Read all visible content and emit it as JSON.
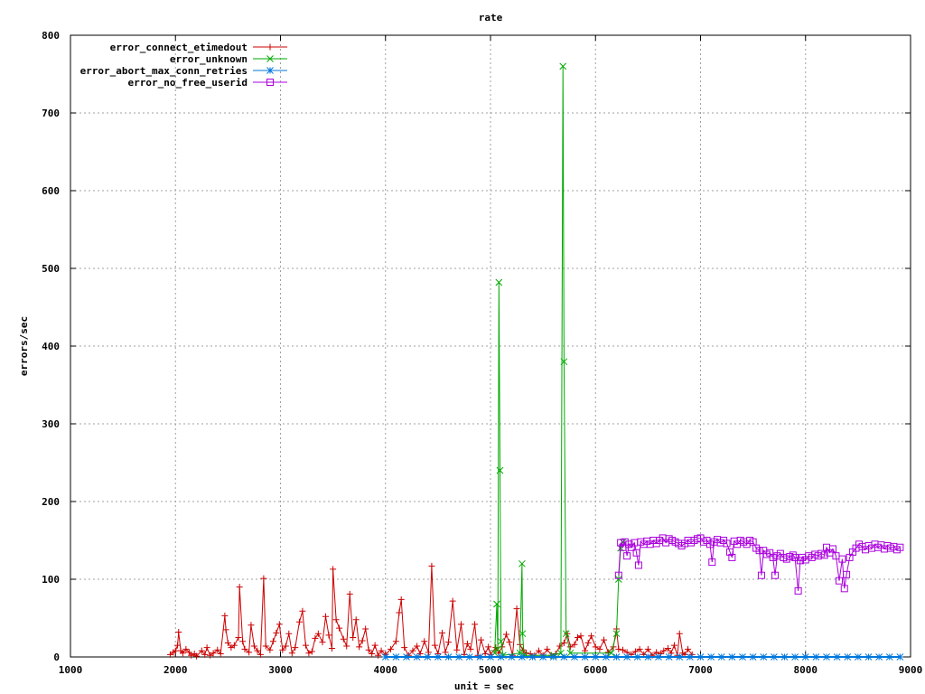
{
  "chart_data": {
    "type": "line",
    "title": "rate",
    "xlabel": "unit = sec",
    "ylabel": "errors/sec",
    "xlim": [
      1000,
      9000
    ],
    "ylim": [
      0,
      800
    ],
    "grid": true,
    "legend_position": "top-left",
    "x_ticks": [
      1000,
      2000,
      3000,
      4000,
      5000,
      6000,
      7000,
      8000,
      9000
    ],
    "y_ticks": [
      0,
      100,
      200,
      300,
      400,
      500,
      600,
      700,
      800
    ],
    "series": [
      {
        "name": "error_connect_etimedout",
        "color": "#cc0000",
        "marker": "plus",
        "points": [
          [
            1950,
            3
          ],
          [
            1980,
            6
          ],
          [
            2000,
            8
          ],
          [
            2020,
            15
          ],
          [
            2030,
            32
          ],
          [
            2050,
            8
          ],
          [
            2070,
            5
          ],
          [
            2100,
            10
          ],
          [
            2130,
            6
          ],
          [
            2150,
            2
          ],
          [
            2180,
            4
          ],
          [
            2200,
            1
          ],
          [
            2250,
            8
          ],
          [
            2280,
            3
          ],
          [
            2300,
            12
          ],
          [
            2330,
            2
          ],
          [
            2360,
            5
          ],
          [
            2400,
            9
          ],
          [
            2430,
            4
          ],
          [
            2470,
            53
          ],
          [
            2480,
            35
          ],
          [
            2500,
            18
          ],
          [
            2530,
            12
          ],
          [
            2560,
            15
          ],
          [
            2600,
            25
          ],
          [
            2610,
            90
          ],
          [
            2640,
            20
          ],
          [
            2660,
            10
          ],
          [
            2700,
            6
          ],
          [
            2720,
            41
          ],
          [
            2750,
            14
          ],
          [
            2780,
            8
          ],
          [
            2810,
            3
          ],
          [
            2840,
            101
          ],
          [
            2860,
            14
          ],
          [
            2900,
            9
          ],
          [
            2930,
            20
          ],
          [
            2960,
            31
          ],
          [
            2990,
            42
          ],
          [
            3020,
            9
          ],
          [
            3050,
            14
          ],
          [
            3080,
            30
          ],
          [
            3110,
            5
          ],
          [
            3140,
            12
          ],
          [
            3180,
            45
          ],
          [
            3210,
            59
          ],
          [
            3240,
            15
          ],
          [
            3270,
            5
          ],
          [
            3300,
            7
          ],
          [
            3330,
            24
          ],
          [
            3360,
            30
          ],
          [
            3400,
            19
          ],
          [
            3430,
            52
          ],
          [
            3460,
            28
          ],
          [
            3490,
            11
          ],
          [
            3500,
            113
          ],
          [
            3530,
            48
          ],
          [
            3560,
            37
          ],
          [
            3600,
            23
          ],
          [
            3630,
            14
          ],
          [
            3660,
            81
          ],
          [
            3690,
            25
          ],
          [
            3720,
            48
          ],
          [
            3750,
            13
          ],
          [
            3780,
            21
          ],
          [
            3810,
            36
          ],
          [
            3840,
            9
          ],
          [
            3870,
            4
          ],
          [
            3900,
            15
          ],
          [
            3930,
            2
          ],
          [
            3960,
            8
          ],
          [
            4000,
            3
          ],
          [
            4050,
            10
          ],
          [
            4100,
            20
          ],
          [
            4130,
            57
          ],
          [
            4150,
            74
          ],
          [
            4180,
            12
          ],
          [
            4220,
            2
          ],
          [
            4260,
            8
          ],
          [
            4300,
            14
          ],
          [
            4330,
            4
          ],
          [
            4370,
            20
          ],
          [
            4410,
            6
          ],
          [
            4440,
            117
          ],
          [
            4470,
            15
          ],
          [
            4500,
            4
          ],
          [
            4540,
            31
          ],
          [
            4570,
            6
          ],
          [
            4600,
            19
          ],
          [
            4640,
            72
          ],
          [
            4680,
            9
          ],
          [
            4720,
            42
          ],
          [
            4750,
            3
          ],
          [
            4780,
            17
          ],
          [
            4810,
            10
          ],
          [
            4850,
            42
          ],
          [
            4880,
            2
          ],
          [
            4910,
            22
          ],
          [
            4950,
            4
          ],
          [
            4980,
            13
          ],
          [
            5000,
            3
          ],
          [
            5050,
            12
          ],
          [
            5080,
            5
          ],
          [
            5110,
            13
          ],
          [
            5150,
            29
          ],
          [
            5180,
            19
          ],
          [
            5210,
            2
          ],
          [
            5250,
            62
          ],
          [
            5280,
            16
          ],
          [
            5310,
            9
          ],
          [
            5340,
            5
          ],
          [
            5380,
            4
          ],
          [
            5420,
            2
          ],
          [
            5460,
            8
          ],
          [
            5500,
            2
          ],
          [
            5540,
            10
          ],
          [
            5580,
            2
          ],
          [
            5620,
            4
          ],
          [
            5660,
            14
          ],
          [
            5700,
            18
          ],
          [
            5730,
            30
          ],
          [
            5760,
            13
          ],
          [
            5800,
            16
          ],
          [
            5830,
            25
          ],
          [
            5860,
            27
          ],
          [
            5900,
            8
          ],
          [
            5930,
            18
          ],
          [
            5960,
            27
          ],
          [
            6000,
            13
          ],
          [
            6040,
            10
          ],
          [
            6080,
            22
          ],
          [
            6120,
            6
          ],
          [
            6170,
            13
          ],
          [
            6200,
            36
          ],
          [
            6220,
            10
          ],
          [
            6260,
            9
          ],
          [
            6300,
            6
          ],
          [
            6340,
            3
          ],
          [
            6380,
            7
          ],
          [
            6420,
            10
          ],
          [
            6460,
            3
          ],
          [
            6500,
            10
          ],
          [
            6540,
            2
          ],
          [
            6580,
            6
          ],
          [
            6620,
            4
          ],
          [
            6650,
            8
          ],
          [
            6690,
            11
          ],
          [
            6720,
            5
          ],
          [
            6750,
            15
          ],
          [
            6780,
            2
          ],
          [
            6800,
            30
          ],
          [
            6830,
            5
          ],
          [
            6850,
            3
          ],
          [
            6880,
            10
          ],
          [
            6920,
            3
          ]
        ]
      },
      {
        "name": "error_unknown",
        "color": "#00aa00",
        "marker": "cross",
        "points": [
          [
            5040,
            5
          ],
          [
            5060,
            68
          ],
          [
            5070,
            10
          ],
          [
            5080,
            482
          ],
          [
            5090,
            240
          ],
          [
            5100,
            20
          ],
          [
            5120,
            2
          ],
          [
            5280,
            5
          ],
          [
            5300,
            120
          ],
          [
            5305,
            30
          ],
          [
            5320,
            2
          ],
          [
            5600,
            2
          ],
          [
            5670,
            5
          ],
          [
            5690,
            760
          ],
          [
            5700,
            380
          ],
          [
            5720,
            30
          ],
          [
            5760,
            5
          ],
          [
            6150,
            5
          ],
          [
            6200,
            30
          ],
          [
            6220,
            100
          ],
          [
            6240,
            140
          ],
          [
            6260,
            148
          ]
        ]
      },
      {
        "name": "error_abort_max_conn_retries",
        "color": "#0077dd",
        "marker": "star",
        "points": [
          [
            4000,
            0
          ],
          [
            4100,
            0
          ],
          [
            4200,
            0
          ],
          [
            4300,
            0
          ],
          [
            4400,
            0
          ],
          [
            4500,
            0
          ],
          [
            4600,
            0
          ],
          [
            4700,
            0
          ],
          [
            4800,
            0
          ],
          [
            4900,
            0
          ],
          [
            5000,
            0
          ],
          [
            5100,
            0
          ],
          [
            5200,
            0
          ],
          [
            5300,
            0
          ],
          [
            5400,
            0
          ],
          [
            5500,
            0
          ],
          [
            5600,
            0
          ],
          [
            5700,
            0
          ],
          [
            5800,
            0
          ],
          [
            5900,
            0
          ],
          [
            6000,
            0
          ],
          [
            6100,
            0
          ],
          [
            6200,
            0
          ],
          [
            6300,
            0
          ],
          [
            6400,
            0
          ],
          [
            6500,
            0
          ],
          [
            6600,
            0
          ],
          [
            6700,
            0
          ],
          [
            6800,
            0
          ],
          [
            6900,
            0
          ],
          [
            7000,
            0
          ],
          [
            7100,
            0
          ],
          [
            7200,
            0
          ],
          [
            7300,
            0
          ],
          [
            7400,
            0
          ],
          [
            7500,
            0
          ],
          [
            7600,
            0
          ],
          [
            7700,
            0
          ],
          [
            7800,
            0
          ],
          [
            7900,
            0
          ],
          [
            8000,
            0
          ],
          [
            8100,
            0
          ],
          [
            8200,
            0
          ],
          [
            8300,
            0
          ],
          [
            8400,
            0
          ],
          [
            8500,
            0
          ],
          [
            8600,
            0
          ],
          [
            8700,
            0
          ],
          [
            8800,
            0
          ],
          [
            8900,
            0
          ]
        ]
      },
      {
        "name": "error_no_free_userid",
        "color": "#aa00dd",
        "marker": "square",
        "points": [
          [
            6220,
            105
          ],
          [
            6240,
            147
          ],
          [
            6260,
            141
          ],
          [
            6280,
            148
          ],
          [
            6300,
            130
          ],
          [
            6320,
            145
          ],
          [
            6340,
            141
          ],
          [
            6370,
            147
          ],
          [
            6390,
            134
          ],
          [
            6410,
            118
          ],
          [
            6430,
            148
          ],
          [
            6460,
            145
          ],
          [
            6490,
            149
          ],
          [
            6520,
            145
          ],
          [
            6550,
            150
          ],
          [
            6580,
            146
          ],
          [
            6610,
            150
          ],
          [
            6640,
            153
          ],
          [
            6670,
            147
          ],
          [
            6700,
            152
          ],
          [
            6730,
            150
          ],
          [
            6760,
            148
          ],
          [
            6790,
            146
          ],
          [
            6820,
            143
          ],
          [
            6850,
            146
          ],
          [
            6880,
            150
          ],
          [
            6910,
            147
          ],
          [
            6940,
            150
          ],
          [
            6970,
            152
          ],
          [
            7000,
            153
          ],
          [
            7030,
            148
          ],
          [
            7060,
            150
          ],
          [
            7090,
            145
          ],
          [
            7110,
            122
          ],
          [
            7130,
            148
          ],
          [
            7160,
            151
          ],
          [
            7190,
            147
          ],
          [
            7220,
            150
          ],
          [
            7250,
            146
          ],
          [
            7280,
            135
          ],
          [
            7300,
            128
          ],
          [
            7320,
            149
          ],
          [
            7350,
            145
          ],
          [
            7380,
            150
          ],
          [
            7410,
            148
          ],
          [
            7440,
            145
          ],
          [
            7470,
            150
          ],
          [
            7500,
            148
          ],
          [
            7530,
            140
          ],
          [
            7560,
            137
          ],
          [
            7580,
            105
          ],
          [
            7600,
            137
          ],
          [
            7630,
            132
          ],
          [
            7660,
            134
          ],
          [
            7690,
            128
          ],
          [
            7710,
            105
          ],
          [
            7730,
            130
          ],
          [
            7760,
            133
          ],
          [
            7790,
            128
          ],
          [
            7820,
            126
          ],
          [
            7850,
            129
          ],
          [
            7880,
            131
          ],
          [
            7900,
            128
          ],
          [
            7930,
            85
          ],
          [
            7950,
            124
          ],
          [
            7970,
            128
          ],
          [
            8000,
            125
          ],
          [
            8030,
            130
          ],
          [
            8060,
            128
          ],
          [
            8090,
            132
          ],
          [
            8120,
            130
          ],
          [
            8150,
            133
          ],
          [
            8180,
            131
          ],
          [
            8200,
            141
          ],
          [
            8230,
            134
          ],
          [
            8260,
            139
          ],
          [
            8290,
            130
          ],
          [
            8320,
            98
          ],
          [
            8350,
            126
          ],
          [
            8370,
            88
          ],
          [
            8390,
            106
          ],
          [
            8420,
            128
          ],
          [
            8450,
            135
          ],
          [
            8480,
            140
          ],
          [
            8510,
            145
          ],
          [
            8540,
            142
          ],
          [
            8570,
            138
          ],
          [
            8600,
            143
          ],
          [
            8630,
            140
          ],
          [
            8660,
            145
          ],
          [
            8690,
            141
          ],
          [
            8720,
            144
          ],
          [
            8750,
            139
          ],
          [
            8780,
            143
          ],
          [
            8810,
            140
          ],
          [
            8840,
            142
          ],
          [
            8870,
            138
          ],
          [
            8900,
            141
          ]
        ]
      }
    ]
  }
}
